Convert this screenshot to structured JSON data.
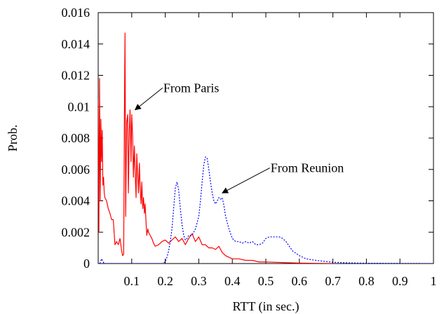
{
  "chart_data": {
    "type": "line",
    "title": "",
    "xlabel": "RTT (in sec.)",
    "ylabel": "Prob.",
    "xlim": [
      0,
      1
    ],
    "ylim": [
      0,
      0.016
    ],
    "x_ticks": [
      0.1,
      0.2,
      0.3,
      0.4,
      0.5,
      0.6,
      0.7,
      0.8,
      0.9,
      1
    ],
    "x_tick_labels": [
      "0.1",
      "0.2",
      "0.3",
      "0.4",
      "0.5",
      "0.6",
      "0.7",
      "0.8",
      "0.9",
      "1"
    ],
    "y_ticks": [
      0,
      0.002,
      0.004,
      0.006,
      0.008,
      0.01,
      0.012,
      0.014,
      0.016
    ],
    "y_tick_labels": [
      "0",
      "0.002",
      "0.004",
      "0.006",
      "0.008",
      "0.01",
      "0.012",
      "0.014",
      "0.016"
    ],
    "grid": false,
    "legend": "none",
    "series": [
      {
        "color": "#ff0000",
        "line_style": "solid",
        "x": [
          0.0,
          0.002,
          0.004,
          0.006,
          0.008,
          0.01,
          0.012,
          0.014,
          0.016,
          0.018,
          0.02,
          0.025,
          0.03,
          0.035,
          0.04,
          0.045,
          0.05,
          0.055,
          0.06,
          0.065,
          0.07,
          0.073,
          0.076,
          0.078,
          0.08,
          0.082,
          0.085,
          0.088,
          0.09,
          0.093,
          0.095,
          0.098,
          0.1,
          0.103,
          0.105,
          0.108,
          0.11,
          0.113,
          0.115,
          0.118,
          0.12,
          0.123,
          0.125,
          0.128,
          0.13,
          0.133,
          0.135,
          0.138,
          0.14,
          0.143,
          0.145,
          0.148,
          0.15,
          0.155,
          0.16,
          0.165,
          0.17,
          0.18,
          0.19,
          0.2,
          0.21,
          0.22,
          0.23,
          0.24,
          0.25,
          0.26,
          0.27,
          0.28,
          0.29,
          0.3,
          0.31,
          0.32,
          0.33,
          0.34,
          0.35,
          0.36,
          0.37,
          0.38,
          0.4,
          0.42,
          0.44,
          0.46,
          0.48,
          0.5,
          0.55,
          0.6,
          0.65,
          0.7
        ],
        "values": [
          0.0105,
          0.002,
          0.0118,
          0.004,
          0.0092,
          0.0065,
          0.0085,
          0.005,
          0.0055,
          0.0045,
          0.0042,
          0.004,
          0.0035,
          0.0032,
          0.0028,
          0.0028,
          0.0012,
          0.0014,
          0.0012,
          0.0016,
          0.0008,
          0.0005,
          0.0006,
          0.009,
          0.0147,
          0.003,
          0.009,
          0.0095,
          0.0045,
          0.0085,
          0.0098,
          0.0065,
          0.0095,
          0.008,
          0.0055,
          0.0075,
          0.006,
          0.0042,
          0.007,
          0.0055,
          0.0045,
          0.0064,
          0.0048,
          0.0038,
          0.0052,
          0.0035,
          0.0042,
          0.0032,
          0.0038,
          0.0025,
          0.0018,
          0.0022,
          0.002,
          0.0018,
          0.0016,
          0.0013,
          0.0011,
          0.0012,
          0.0014,
          0.0015,
          0.0013,
          0.0015,
          0.0017,
          0.0014,
          0.0016,
          0.0012,
          0.0016,
          0.0019,
          0.0014,
          0.0017,
          0.0012,
          0.0012,
          0.001,
          0.001,
          0.0009,
          0.0011,
          0.0007,
          0.0005,
          0.0003,
          0.0003,
          0.0002,
          0.0002,
          0.0001,
          0.0001,
          6e-05,
          3e-05,
          1e-05,
          0.0
        ]
      },
      {
        "color": "#0000ff",
        "line_style": "dotted",
        "x": [
          0.005,
          0.01,
          0.015,
          0.018,
          0.02,
          0.06,
          0.1,
          0.15,
          0.19,
          0.2,
          0.205,
          0.21,
          0.215,
          0.22,
          0.225,
          0.23,
          0.235,
          0.24,
          0.245,
          0.25,
          0.255,
          0.26,
          0.265,
          0.27,
          0.28,
          0.29,
          0.3,
          0.305,
          0.31,
          0.315,
          0.32,
          0.325,
          0.33,
          0.335,
          0.34,
          0.345,
          0.35,
          0.355,
          0.36,
          0.365,
          0.37,
          0.375,
          0.38,
          0.39,
          0.4,
          0.41,
          0.42,
          0.43,
          0.44,
          0.45,
          0.46,
          0.47,
          0.48,
          0.49,
          0.5,
          0.51,
          0.52,
          0.53,
          0.54,
          0.55,
          0.56,
          0.57,
          0.58,
          0.6,
          0.62,
          0.65,
          0.7,
          0.75,
          0.8,
          0.9,
          1.0
        ],
        "values": [
          0.0,
          0.0003,
          0.0001,
          0.0,
          0.0,
          0.0,
          0.0,
          0.0,
          0.0,
          0.0001,
          0.0004,
          0.0008,
          0.0014,
          0.0022,
          0.0035,
          0.0048,
          0.0052,
          0.0047,
          0.0035,
          0.0025,
          0.0018,
          0.0015,
          0.0016,
          0.0018,
          0.0018,
          0.0022,
          0.003,
          0.004,
          0.0052,
          0.0063,
          0.0068,
          0.0067,
          0.006,
          0.0052,
          0.0045,
          0.004,
          0.0038,
          0.004,
          0.0042,
          0.0041,
          0.0042,
          0.0037,
          0.003,
          0.0022,
          0.0016,
          0.0014,
          0.0014,
          0.0013,
          0.0014,
          0.0013,
          0.0014,
          0.0012,
          0.0012,
          0.0013,
          0.0016,
          0.0017,
          0.0017,
          0.0017,
          0.0017,
          0.0016,
          0.0014,
          0.0011,
          0.0008,
          0.0005,
          0.0003,
          0.0002,
          8e-05,
          4e-05,
          2e-05,
          1e-05,
          0.0
        ]
      }
    ],
    "annotations": [
      {
        "text": "From Paris",
        "x": 0.11,
        "y": 0.0098,
        "text_x": 0.19,
        "text_y": 0.0112
      },
      {
        "text": "From Reunion",
        "x": 0.37,
        "y": 0.0045,
        "text_x": 0.51,
        "text_y": 0.0061
      }
    ]
  }
}
